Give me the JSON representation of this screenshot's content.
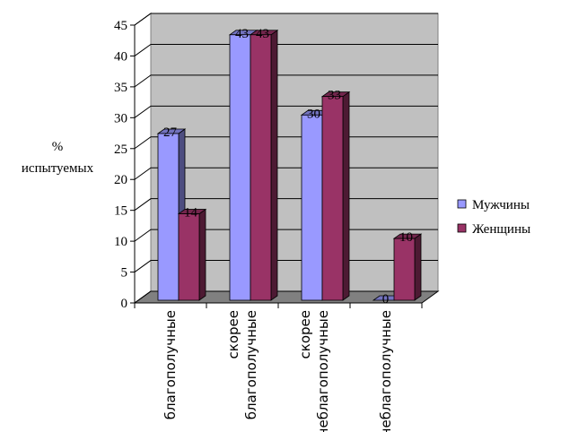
{
  "chart_data": {
    "type": "bar3d",
    "ylabel": "% испытуемых",
    "categories": [
      "благополучные",
      "скорее благополучные",
      "скорее неблагополучные",
      "неблагополучные"
    ],
    "series": [
      {
        "name": "Мужчины",
        "color": "#9999ff",
        "values": [
          27,
          43,
          30,
          0
        ]
      },
      {
        "name": "Женщины",
        "color": "#993366",
        "values": [
          14,
          43,
          33,
          10
        ]
      }
    ],
    "ylim": [
      0,
      45
    ],
    "yticks": [
      0,
      5,
      10,
      15,
      20,
      25,
      30,
      35,
      40,
      45
    ],
    "grid": true,
    "legend": "right"
  }
}
